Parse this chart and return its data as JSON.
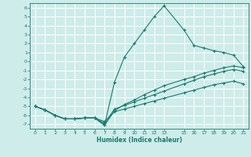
{
  "title": "",
  "xlabel": "Humidex (Indice chaleur)",
  "bg_color": "#ceecea",
  "grid_color": "#ffffff",
  "line_color": "#1a7a6e",
  "xlim": [
    -0.5,
    21.5
  ],
  "ylim": [
    -7.5,
    6.5
  ],
  "xticks": [
    0,
    1,
    2,
    3,
    4,
    5,
    6,
    7,
    8,
    9,
    10,
    11,
    12,
    13,
    15,
    16,
    17,
    18,
    19,
    20,
    21
  ],
  "yticks": [
    6,
    5,
    4,
    3,
    2,
    1,
    0,
    -1,
    -2,
    -3,
    -4,
    -5,
    -6,
    -7
  ],
  "line1_x": [
    0,
    1,
    2,
    3,
    4,
    5,
    6,
    7,
    8,
    9,
    10,
    11,
    12,
    13,
    15,
    16,
    17,
    18,
    19,
    20,
    21
  ],
  "line1_y": [
    -5.0,
    -5.4,
    -6.0,
    -6.4,
    -6.4,
    -6.3,
    -6.3,
    -6.7,
    -5.6,
    -5.3,
    -5.0,
    -4.7,
    -4.4,
    -4.1,
    -3.5,
    -3.2,
    -2.9,
    -2.6,
    -2.4,
    -2.2,
    -2.5
  ],
  "line2_x": [
    0,
    1,
    2,
    3,
    4,
    5,
    6,
    7,
    8,
    9,
    10,
    11,
    12,
    13,
    15,
    16,
    17,
    18,
    19,
    20,
    21
  ],
  "line2_y": [
    -5.0,
    -5.4,
    -6.0,
    -6.4,
    -6.4,
    -6.3,
    -6.3,
    -7.1,
    -5.5,
    -4.8,
    -4.3,
    -3.7,
    -3.2,
    -2.7,
    -2.0,
    -1.7,
    -1.3,
    -1.0,
    -0.7,
    -0.5,
    -0.7
  ],
  "line3_x": [
    0,
    1,
    2,
    3,
    4,
    5,
    6,
    7,
    8,
    9,
    10,
    11,
    12,
    13,
    15,
    16,
    17,
    18,
    19,
    20,
    21
  ],
  "line3_y": [
    -5.0,
    -5.4,
    -6.0,
    -6.4,
    -6.4,
    -6.3,
    -6.3,
    -7.1,
    -2.3,
    0.5,
    2.0,
    3.5,
    5.0,
    6.2,
    3.5,
    1.8,
    1.5,
    1.2,
    1.0,
    0.7,
    -0.6
  ],
  "line4_x": [
    0,
    1,
    2,
    3,
    4,
    5,
    6,
    7,
    8,
    9,
    10,
    11,
    12,
    13,
    15,
    16,
    17,
    18,
    19,
    20,
    21
  ],
  "line4_y": [
    -5.0,
    -5.4,
    -6.0,
    -6.4,
    -6.4,
    -6.3,
    -6.3,
    -6.9,
    -5.3,
    -4.9,
    -4.5,
    -4.1,
    -3.7,
    -3.3,
    -2.5,
    -2.1,
    -1.7,
    -1.4,
    -1.1,
    -0.9,
    -1.1
  ]
}
